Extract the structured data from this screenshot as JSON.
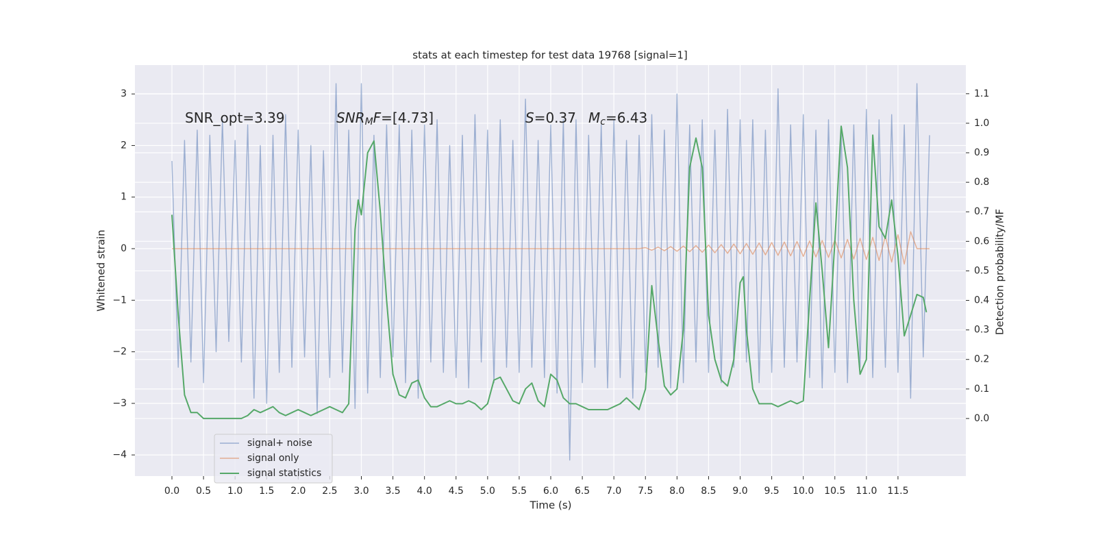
{
  "chart_data": {
    "type": "line",
    "title": "stats at each timestep for test data 19768 [signal=1]",
    "x_label": "Time (s)",
    "y_label": "Whitened strain",
    "y2_label": "Detection probability/MF",
    "annotations": [
      [
        "SNR_opt=3.39"
      ],
      [
        "SNR",
        "M",
        "F",
        "=[4.73]"
      ],
      [
        "S",
        "=0.37"
      ],
      [
        "M",
        "c",
        "=6.43"
      ]
    ],
    "grid": true,
    "legend": "lower left",
    "xlim": [
      -0.586,
      12.575
    ],
    "ylim": [
      -4.41,
      3.56
    ],
    "y2lim": [
      -0.195,
      1.197
    ],
    "xticks": [
      {
        "value": 0,
        "label": "0.0"
      },
      {
        "value": 0.5,
        "label": "0.5"
      },
      {
        "value": 1,
        "label": "1.0"
      },
      {
        "value": 1.5,
        "label": "1.5"
      },
      {
        "value": 2,
        "label": "2.0"
      },
      {
        "value": 2.5,
        "label": "2.5"
      },
      {
        "value": 3,
        "label": "3.0"
      },
      {
        "value": 3.5,
        "label": "3.5"
      },
      {
        "value": 4,
        "label": "4.0"
      },
      {
        "value": 4.5,
        "label": "4.5"
      },
      {
        "value": 5,
        "label": "5.0"
      },
      {
        "value": 5.5,
        "label": "5.5"
      },
      {
        "value": 6,
        "label": "6.0"
      },
      {
        "value": 6.5,
        "label": "6.5"
      },
      {
        "value": 7,
        "label": "7.0"
      },
      {
        "value": 7.5,
        "label": "7.5"
      },
      {
        "value": 8,
        "label": "8.0"
      },
      {
        "value": 8.5,
        "label": "8.5"
      },
      {
        "value": 9,
        "label": "9.0"
      },
      {
        "value": 9.5,
        "label": "9.5"
      },
      {
        "value": 10,
        "label": "10.0"
      },
      {
        "value": 10.5,
        "label": "10.5"
      },
      {
        "value": 11,
        "label": "11.0"
      },
      {
        "value": 11.5,
        "label": "11.5"
      }
    ],
    "yticks": [
      {
        "value": -4,
        "label": "−4"
      },
      {
        "value": -3,
        "label": "−3"
      },
      {
        "value": -2,
        "label": "−2"
      },
      {
        "value": -1,
        "label": "−1"
      },
      0,
      1,
      2,
      3
    ],
    "y2ticks": [
      {
        "value": 0,
        "label": "0.0"
      },
      {
        "value": 0.1,
        "label": "0.1"
      },
      {
        "value": 0.2,
        "label": "0.2"
      },
      {
        "value": 0.3,
        "label": "0.3"
      },
      {
        "value": 0.4,
        "label": "0.4"
      },
      {
        "value": 0.5,
        "label": "0.5"
      },
      {
        "value": 0.6,
        "label": "0.6"
      },
      {
        "value": 0.7,
        "label": "0.7"
      },
      {
        "value": 0.8,
        "label": "0.8"
      },
      {
        "value": 0.9,
        "label": "0.9"
      },
      {
        "value": 1,
        "label": "1.0"
      },
      {
        "value": 1.1,
        "label": "1.1"
      }
    ],
    "x": [
      0,
      0.1,
      0.2,
      0.3,
      0.4,
      0.5,
      0.6,
      0.7,
      0.8,
      0.9,
      1,
      1.1,
      1.2,
      1.3,
      1.4,
      1.5,
      1.6,
      1.7,
      1.8,
      1.9,
      2,
      2.1,
      2.2,
      2.3,
      2.4,
      2.5,
      2.6,
      2.7,
      2.8,
      2.9,
      3,
      3.1,
      3.2,
      3.3,
      3.4,
      3.5,
      3.6,
      3.7,
      3.8,
      3.9,
      4,
      4.1,
      4.2,
      4.3,
      4.4,
      4.5,
      4.6,
      4.7,
      4.8,
      4.9,
      5,
      5.1,
      5.2,
      5.3,
      5.4,
      5.5,
      5.6,
      5.7,
      5.8,
      5.9,
      6,
      6.1,
      6.2,
      6.3,
      6.4,
      6.5,
      6.6,
      6.7,
      6.8,
      6.9,
      7,
      7.1,
      7.2,
      7.3,
      7.4,
      7.5,
      7.6,
      7.7,
      7.8,
      7.9,
      8,
      8.1,
      8.2,
      8.3,
      8.4,
      8.5,
      8.6,
      8.7,
      8.8,
      8.9,
      9,
      9.1,
      9.2,
      9.3,
      9.4,
      9.5,
      9.6,
      9.7,
      9.8,
      9.9,
      10,
      10.1,
      10.2,
      10.3,
      10.4,
      10.5,
      10.6,
      10.7,
      10.8,
      10.9,
      11,
      11.1,
      11.2,
      11.3,
      11.4,
      11.5,
      11.6,
      11.7,
      11.8,
      11.9,
      12
    ],
    "series": [
      {
        "name": "signal+ noise",
        "color": "#4c72b0",
        "values": [
          1.7,
          -2.3,
          2.1,
          -2.2,
          2.3,
          -2.6,
          2.2,
          -2.0,
          2.5,
          -1.8,
          2.1,
          -2.2,
          2.4,
          -2.9,
          2.0,
          -3.0,
          2.2,
          -2.4,
          2.6,
          -2.3,
          2.3,
          -2.1,
          2.0,
          -3.2,
          1.9,
          -2.5,
          3.2,
          -2.4,
          2.3,
          -3.1,
          3.2,
          -2.8,
          2.2,
          -2.5,
          2.4,
          -2.1,
          2.4,
          -2.6,
          2.3,
          -2.9,
          2.4,
          -2.2,
          2.5,
          -2.4,
          2.0,
          -2.5,
          2.2,
          -2.7,
          2.6,
          -2.2,
          2.3,
          -2.6,
          2.5,
          -2.3,
          2.1,
          -2.4,
          2.9,
          -2.3,
          2.1,
          -2.5,
          2.4,
          -2.8,
          2.5,
          -4.1,
          2.5,
          -2.6,
          2.2,
          -2.3,
          2.4,
          -2.7,
          2.5,
          -2.5,
          2.1,
          -2.9,
          2.2,
          -2.4,
          2.6,
          -2.3,
          2.3,
          -2.7,
          3.0,
          -2.6,
          2.4,
          -2.2,
          2.5,
          -2.4,
          2.3,
          -2.6,
          2.7,
          -2.3,
          2.5,
          -2.2,
          2.5,
          -2.6,
          2.3,
          -2.4,
          3.1,
          -2.3,
          2.4,
          -2.2,
          2.6,
          -2.5,
          2.3,
          -2.7,
          2.5,
          -2.4,
          2.3,
          -2.6,
          2.4,
          -2.3,
          2.7,
          -2.5,
          2.5,
          -2.3,
          2.6,
          -2.4,
          2.4,
          -2.9,
          3.2,
          -2.1,
          2.2
        ]
      },
      {
        "name": "signal only",
        "color": "#dd8452",
        "values": [
          0,
          0,
          0,
          0,
          0,
          0,
          0,
          0,
          0,
          0,
          0,
          0,
          0,
          0,
          0,
          0,
          0,
          0,
          0,
          0,
          0,
          0,
          0,
          0,
          0,
          0,
          0,
          0,
          0,
          0,
          0,
          0,
          0,
          0,
          0,
          0,
          0,
          0,
          0,
          0,
          0,
          0,
          0,
          0,
          0,
          0,
          0,
          0,
          0,
          0,
          0,
          0,
          0,
          0,
          0,
          0,
          0,
          0,
          0,
          0,
          0,
          0,
          0,
          0,
          0,
          0,
          0,
          0,
          0,
          0,
          0,
          0,
          0,
          0,
          0,
          0.02,
          -0.03,
          0.03,
          -0.04,
          0.04,
          -0.05,
          0.05,
          -0.06,
          0.06,
          -0.07,
          0.07,
          -0.08,
          0.08,
          -0.09,
          0.09,
          -0.1,
          0.1,
          -0.11,
          0.11,
          -0.12,
          0.12,
          -0.13,
          0.13,
          -0.14,
          0.14,
          -0.15,
          0.15,
          -0.16,
          0.16,
          -0.17,
          0.17,
          -0.18,
          0.18,
          -0.2,
          0.2,
          -0.21,
          0.22,
          -0.23,
          0.24,
          -0.26,
          0.27,
          -0.3,
          0.33,
          0,
          0,
          0
        ]
      },
      {
        "name": "signal statistics",
        "color": "#55a868",
        "axis": "y2",
        "x": [
          0,
          0.1,
          0.2,
          0.3,
          0.4,
          0.5,
          0.6,
          0.7,
          0.8,
          0.9,
          1,
          1.1,
          1.2,
          1.3,
          1.4,
          1.5,
          1.6,
          1.7,
          1.8,
          1.9,
          2,
          2.1,
          2.2,
          2.3,
          2.4,
          2.5,
          2.6,
          2.7,
          2.8,
          2.9,
          2.95,
          3,
          3.1,
          3.2,
          3.3,
          3.4,
          3.5,
          3.6,
          3.7,
          3.8,
          3.9,
          4,
          4.1,
          4.2,
          4.3,
          4.4,
          4.5,
          4.6,
          4.7,
          4.8,
          4.9,
          5,
          5.1,
          5.2,
          5.3,
          5.4,
          5.5,
          5.6,
          5.7,
          5.8,
          5.9,
          6,
          6.1,
          6.2,
          6.3,
          6.4,
          6.5,
          6.6,
          6.7,
          6.8,
          6.9,
          7,
          7.1,
          7.2,
          7.3,
          7.4,
          7.5,
          7.6,
          7.7,
          7.8,
          7.9,
          8,
          8.1,
          8.2,
          8.3,
          8.4,
          8.5,
          8.6,
          8.7,
          8.8,
          8.9,
          9,
          9.05,
          9.1,
          9.2,
          9.3,
          9.4,
          9.5,
          9.6,
          9.7,
          9.8,
          9.9,
          10,
          10.1,
          10.2,
          10.3,
          10.4,
          10.5,
          10.6,
          10.7,
          10.8,
          10.9,
          11,
          11.1,
          11.2,
          11.3,
          11.4,
          11.5,
          11.6,
          11.7,
          11.8,
          11.9,
          11.95
        ],
        "values": [
          0.69,
          0.35,
          0.08,
          0.02,
          0.02,
          0,
          0,
          0,
          0,
          0,
          0,
          0,
          0.01,
          0.03,
          0.02,
          0.03,
          0.04,
          0.02,
          0.01,
          0.02,
          0.03,
          0.02,
          0.01,
          0.02,
          0.03,
          0.04,
          0.03,
          0.02,
          0.05,
          0.64,
          0.74,
          0.69,
          0.9,
          0.94,
          0.7,
          0.4,
          0.15,
          0.08,
          0.07,
          0.12,
          0.13,
          0.07,
          0.04,
          0.04,
          0.05,
          0.06,
          0.05,
          0.05,
          0.06,
          0.05,
          0.03,
          0.05,
          0.13,
          0.14,
          0.1,
          0.06,
          0.05,
          0.1,
          0.12,
          0.06,
          0.04,
          0.15,
          0.13,
          0.07,
          0.05,
          0.05,
          0.04,
          0.03,
          0.03,
          0.03,
          0.03,
          0.04,
          0.05,
          0.07,
          0.05,
          0.03,
          0.1,
          0.45,
          0.27,
          0.11,
          0.08,
          0.1,
          0.3,
          0.85,
          0.95,
          0.85,
          0.35,
          0.2,
          0.13,
          0.11,
          0.2,
          0.46,
          0.48,
          0.3,
          0.1,
          0.05,
          0.05,
          0.05,
          0.04,
          0.05,
          0.06,
          0.05,
          0.06,
          0.4,
          0.73,
          0.5,
          0.24,
          0.6,
          0.99,
          0.85,
          0.4,
          0.15,
          0.2,
          0.96,
          0.65,
          0.61,
          0.74,
          0.55,
          0.28,
          0.35,
          0.42,
          0.41,
          0.36
        ]
      }
    ]
  }
}
